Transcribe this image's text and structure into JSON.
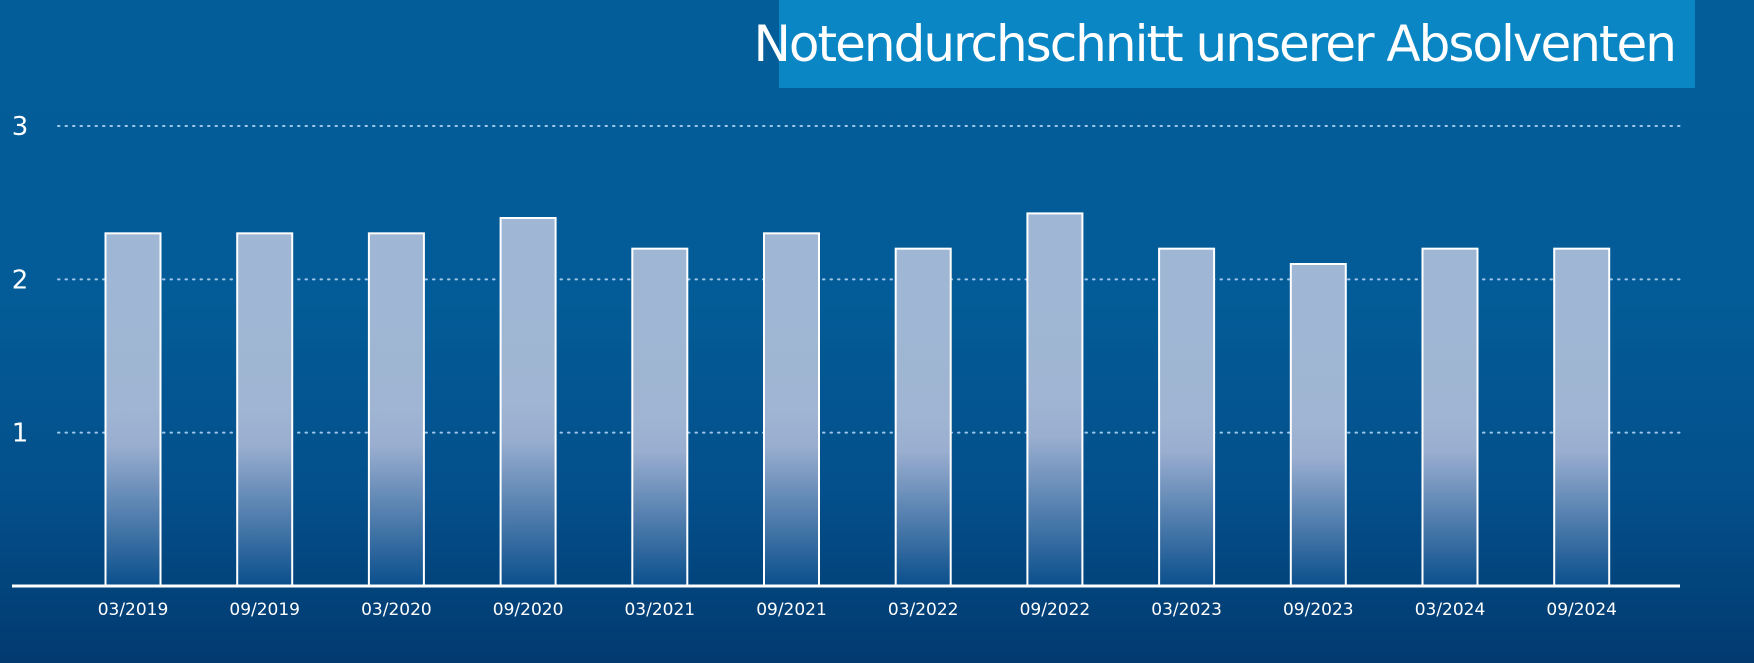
{
  "chart_data": {
    "type": "bar",
    "title": "Notendurchschnitt unserer Absolventen",
    "xlabel": "",
    "ylabel": "",
    "categories": [
      "03/2019",
      "09/2019",
      "03/2020",
      "09/2020",
      "03/2021",
      "09/2021",
      "03/2022",
      "09/2022",
      "03/2023",
      "09/2023",
      "03/2024",
      "09/2024"
    ],
    "values": [
      2.3,
      2.3,
      2.3,
      2.4,
      2.2,
      2.3,
      2.2,
      2.43,
      2.2,
      2.1,
      2.2,
      2.2
    ],
    "yticks": [
      "1",
      "2",
      "3"
    ],
    "ylim": [
      0,
      3
    ],
    "grid": "horizontal dotted",
    "legend": "none",
    "colors": {
      "bar_fill_top": "#9fb7d4",
      "bar_fill_bottom": "#0a4f8c",
      "bar_stroke": "#ffffff",
      "title_box": "#0a86c4"
    }
  }
}
